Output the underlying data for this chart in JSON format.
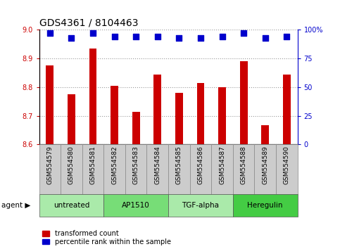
{
  "title": "GDS4361 / 8104463",
  "samples": [
    "GSM554579",
    "GSM554580",
    "GSM554581",
    "GSM554582",
    "GSM554583",
    "GSM554584",
    "GSM554585",
    "GSM554586",
    "GSM554587",
    "GSM554588",
    "GSM554589",
    "GSM554590"
  ],
  "red_values": [
    8.875,
    8.775,
    8.935,
    8.805,
    8.715,
    8.845,
    8.78,
    8.815,
    8.8,
    8.89,
    8.668,
    8.845
  ],
  "blue_values": [
    97,
    93,
    97,
    94,
    94,
    94,
    93,
    93,
    94,
    97,
    93,
    94
  ],
  "ylim_left": [
    8.6,
    9.0
  ],
  "ylim_right": [
    0,
    100
  ],
  "yticks_left": [
    8.6,
    8.7,
    8.8,
    8.9,
    9.0
  ],
  "yticks_right": [
    0,
    25,
    50,
    75,
    100
  ],
  "ytick_labels_right": [
    "0",
    "25",
    "50",
    "75",
    "100%"
  ],
  "agent_groups": [
    {
      "label": "untreated",
      "start": 0,
      "end": 3,
      "color": "#aaeaaa"
    },
    {
      "label": "AP1510",
      "start": 3,
      "end": 6,
      "color": "#77dd77"
    },
    {
      "label": "TGF-alpha",
      "start": 6,
      "end": 9,
      "color": "#aaeaaa"
    },
    {
      "label": "Heregulin",
      "start": 9,
      "end": 12,
      "color": "#44cc44"
    }
  ],
  "bar_color": "#cc0000",
  "dot_color": "#0000cc",
  "bar_width": 0.35,
  "dot_size": 40,
  "dot_marker": "s",
  "grid_color": "#000000",
  "grid_alpha": 0.4,
  "grid_linestyle": ":",
  "bg_xticklabels": "#cccccc",
  "legend_red_label": "transformed count",
  "legend_blue_label": "percentile rank within the sample",
  "agent_label": "agent",
  "base_value": 8.6
}
